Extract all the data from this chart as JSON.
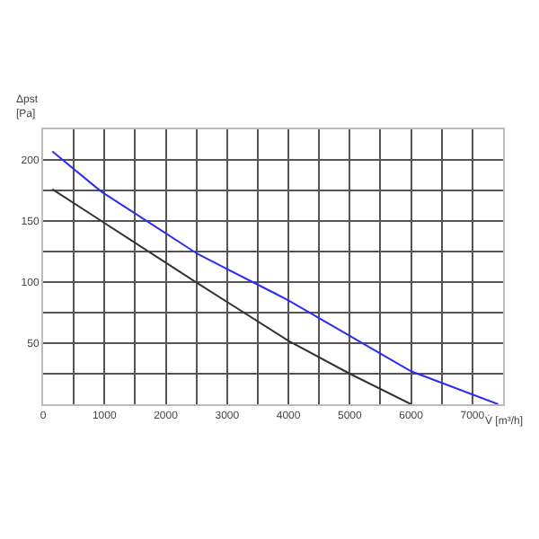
{
  "chart_data": {
    "type": "line",
    "xlabel": "V̇ [m³/h]",
    "ylabel": "Δpst [Pa]",
    "xlim": [
      0,
      7500
    ],
    "ylim": [
      0,
      225
    ],
    "xticks": [
      0,
      {
        "value": 500,
        "label": null
      },
      1000,
      {
        "value": 1500,
        "label": null
      },
      2000,
      {
        "value": 2500,
        "label": null
      },
      3000,
      {
        "value": 3500,
        "label": null
      },
      4000,
      {
        "value": 4500,
        "label": null
      },
      5000,
      {
        "value": 5500,
        "label": null
      },
      6000,
      {
        "value": 6500,
        "label": null
      },
      7000,
      {
        "value": 7500,
        "label": null
      }
    ],
    "yticks": [
      {
        "value": 25,
        "label": null
      },
      50,
      {
        "value": 75,
        "label": null
      },
      100,
      {
        "value": 125,
        "label": null
      },
      150,
      {
        "value": 175,
        "label": null
      },
      200,
      {
        "value": 225,
        "label": null
      }
    ],
    "grid": true,
    "legend": false,
    "marker": "none",
    "line_style": "solid",
    "series": [
      {
        "color": "#2b2bff",
        "x": [
          150,
          950,
          2520,
          3770,
          4000,
          5000,
          6000,
          7420
        ],
        "values": [
          207,
          174,
          123,
          91,
          85,
          56,
          27,
          0
        ]
      },
      {
        "color": "#333333",
        "x": [
          150,
          950,
          2520,
          4000,
          5000,
          6000
        ],
        "values": [
          176,
          150,
          99,
          52,
          25,
          0
        ]
      }
    ]
  }
}
